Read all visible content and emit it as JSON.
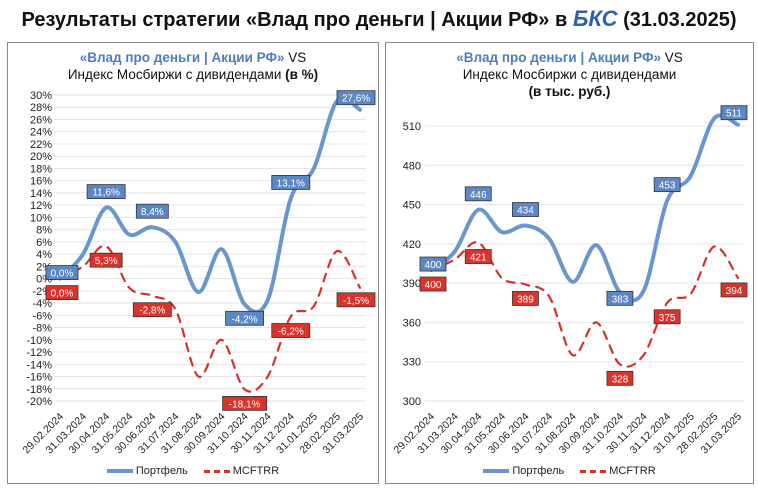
{
  "title": {
    "prefix": "Результаты стратегии «Влад про деньги | Акции РФ» в ",
    "logo": "БКС",
    "suffix": " (31.03.2025)"
  },
  "colors": {
    "portfolio": "#6a96cf",
    "index": "#d6302b",
    "label_blue": "#5b87c5",
    "label_red": "#d9342c"
  },
  "chart_data": [
    {
      "type": "line",
      "title_blue": "«Влад про деньги | Акции РФ»",
      "title_vs": " VS",
      "title_line2": "Индекс Мосбиржи с дивидендами ",
      "title_unit": "(в %)",
      "title_line3": "",
      "categories": [
        "29.02.2024",
        "31.03.2024",
        "30.04.2024",
        "31.05.2024",
        "30.06.2024",
        "31.07.2024",
        "31.08.2024",
        "30.09.2024",
        "31.10.2024",
        "30.11.2024",
        "31.12.2024",
        "31.01.2025",
        "28.02.2025",
        "31.03.2025"
      ],
      "ylim": [
        -20,
        30
      ],
      "yticks": [
        "30%",
        "28%",
        "26%",
        "24%",
        "22%",
        "20%",
        "18%",
        "16%",
        "14%",
        "12%",
        "10%",
        "8%",
        "6%",
        "4%",
        "2%",
        "0%",
        "-2%",
        "-4%",
        "-6%",
        "-8%",
        "-10%",
        "-12%",
        "-14%",
        "-16%",
        "-18%",
        "-20%"
      ],
      "grid": true,
      "legend": "bottom",
      "series": [
        {
          "name": "Портфель",
          "style": "solid",
          "values": [
            0,
            4,
            11.6,
            7.2,
            8.4,
            6,
            -2.2,
            4.8,
            -4.2,
            -3.5,
            13.1,
            18,
            29,
            27.6
          ],
          "labels": {
            "0": "0,0%",
            "2": "11,6%",
            "4": "8,4%",
            "8": "-4,2%",
            "10": "13,1%",
            "13": "27,6%"
          }
        },
        {
          "name": "MCFTRR",
          "style": "dashed",
          "values": [
            0,
            2,
            5.3,
            -1.5,
            -2.8,
            -5,
            -16,
            -10,
            -18.1,
            -16,
            -6.2,
            -4.5,
            4.5,
            -1.5
          ],
          "labels": {
            "0": "0,0%",
            "2": "5,3%",
            "4": "-2,8%",
            "8": "-18,1%",
            "10": "-6,2%",
            "13": "-1,5%"
          }
        }
      ]
    },
    {
      "type": "line",
      "title_blue": "«Влад про деньги | Акции РФ»",
      "title_vs": " VS",
      "title_line2": "Индекс Мосбиржи с дивидендами",
      "title_unit": "",
      "title_line3": "(в тыс. руб.)",
      "categories": [
        "29.02.2024",
        "31.03.2024",
        "30.04.2024",
        "31.05.2024",
        "30.06.2024",
        "31.07.2024",
        "31.08.2024",
        "30.09.2024",
        "31.10.2024",
        "30.11.2024",
        "31.12.2024",
        "31.01.2025",
        "28.02.2025",
        "31.03.2025"
      ],
      "ylim": [
        300,
        525
      ],
      "yticks": [
        "510",
        "480",
        "450",
        "420",
        "390",
        "360",
        "330",
        "300"
      ],
      "grid": true,
      "legend": "bottom",
      "series": [
        {
          "name": "Портфель",
          "style": "solid",
          "values": [
            400,
            414,
            446,
            429,
            434,
            424,
            391,
            419,
            383,
            384,
            453,
            472,
            516,
            511
          ],
          "labels": {
            "0": "400",
            "2": "446",
            "4": "434",
            "8": "383",
            "10": "453",
            "13": "511"
          }
        },
        {
          "name": "MCFTRR",
          "style": "dashed",
          "values": [
            400,
            408,
            421,
            394,
            389,
            380,
            335,
            360,
            328,
            335,
            375,
            382,
            418,
            394
          ],
          "labels": {
            "0": "400",
            "2": "421",
            "4": "389",
            "8": "328",
            "10": "375",
            "13": "394"
          }
        }
      ]
    }
  ]
}
